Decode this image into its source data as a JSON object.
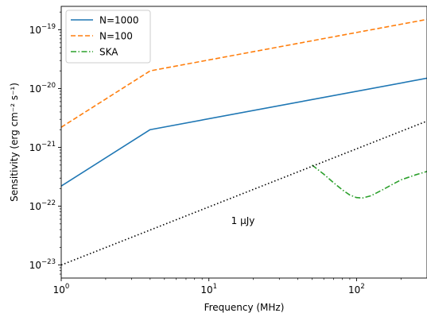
{
  "chart_data": {
    "type": "line",
    "xlabel": "Frequency (MHz)",
    "ylabel": "Sensitivity (erg cm⁻² s⁻¹)",
    "xscale": "log",
    "yscale": "log",
    "xlim": [
      1,
      300
    ],
    "ylim": [
      6e-24,
      2.5e-19
    ],
    "x_ticks": [
      {
        "value": 1,
        "base": "10",
        "exp": "0"
      },
      {
        "value": 10,
        "base": "10",
        "exp": "1"
      },
      {
        "value": 100,
        "base": "10",
        "exp": "2"
      }
    ],
    "y_ticks": [
      {
        "value": 1e-23,
        "base": "10",
        "exp": "−23"
      },
      {
        "value": 1e-22,
        "base": "10",
        "exp": "−22"
      },
      {
        "value": 1e-21,
        "base": "10",
        "exp": "−21"
      },
      {
        "value": 1e-20,
        "base": "10",
        "exp": "−20"
      },
      {
        "value": 1e-19,
        "base": "10",
        "exp": "−19"
      }
    ],
    "grid": false,
    "legend_position": "top-left",
    "series": [
      {
        "name": "N=1000",
        "color": "#1f77b4",
        "style": "solid",
        "x": [
          1,
          4,
          300
        ],
        "y": [
          2.2e-22,
          2e-21,
          1.5e-20
        ]
      },
      {
        "name": "N=100",
        "color": "#ff7f0e",
        "style": "dashed",
        "x": [
          1,
          4,
          300
        ],
        "y": [
          2.2e-21,
          2e-20,
          1.5e-19
        ]
      },
      {
        "name": "SKA",
        "color": "#2ca02c",
        "style": "dashdot",
        "x": [
          50,
          60,
          70,
          80,
          90,
          100,
          110,
          125,
          150,
          175,
          200,
          250,
          300
        ],
        "y": [
          5e-22,
          3.5e-22,
          2.5e-22,
          1.9e-22,
          1.55e-22,
          1.4e-22,
          1.38e-22,
          1.5e-22,
          1.9e-22,
          2.35e-22,
          2.8e-22,
          3.4e-22,
          3.9e-22
        ]
      },
      {
        "color": "#000000",
        "style": "dotted",
        "x": [
          1,
          300
        ],
        "y": [
          1e-23,
          2.8e-21
        ]
      }
    ],
    "annotations": [
      {
        "text": "1 μJy",
        "x": 17,
        "y": 5e-23
      }
    ]
  }
}
